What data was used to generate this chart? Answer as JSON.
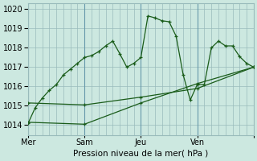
{
  "xlabel": "Pression niveau de la mer( hPa )",
  "bg_color": "#cce8e0",
  "grid_color": "#99bbbb",
  "line_color": "#1a5c1a",
  "ylim": [
    1013.5,
    1020.3
  ],
  "yticks": [
    1014,
    1015,
    1016,
    1017,
    1018,
    1019,
    1020
  ],
  "xlim": [
    0,
    96
  ],
  "day_ticks": [
    0,
    24,
    48,
    72,
    96
  ],
  "day_labels": [
    "Mer",
    "Sam",
    "Jeu",
    "Ven",
    ""
  ],
  "minor_ticks": [
    0,
    3,
    6,
    9,
    12,
    15,
    18,
    21,
    24,
    27,
    30,
    33,
    36,
    39,
    42,
    45,
    48,
    51,
    54,
    57,
    60,
    63,
    66,
    69,
    72,
    75,
    78,
    81,
    84,
    87,
    90,
    93,
    96
  ],
  "series1_x": [
    0,
    3,
    6,
    9,
    12,
    15,
    18,
    21,
    24,
    27,
    30,
    33,
    36,
    39,
    42,
    45,
    48,
    51,
    54,
    57,
    60,
    63,
    66,
    69,
    72,
    75,
    78,
    81,
    84,
    87,
    90,
    93,
    96
  ],
  "series1_y": [
    1014.1,
    1014.9,
    1015.4,
    1015.8,
    1016.1,
    1016.6,
    1016.9,
    1017.2,
    1017.5,
    1017.6,
    1017.8,
    1018.1,
    1018.35,
    1017.7,
    1017.0,
    1017.2,
    1017.5,
    1019.65,
    1019.55,
    1019.4,
    1019.35,
    1018.6,
    1016.6,
    1015.3,
    1016.1,
    1016.1,
    1018.0,
    1018.35,
    1018.1,
    1018.1,
    1017.55,
    1017.2,
    1017.0
  ],
  "series2_x": [
    0,
    24,
    48,
    72,
    96
  ],
  "series2_y": [
    1015.15,
    1015.05,
    1015.45,
    1015.9,
    1017.0
  ],
  "series3_x": [
    0,
    24,
    48,
    72,
    96
  ],
  "series3_y": [
    1014.15,
    1014.05,
    1015.15,
    1016.15,
    1017.0
  ]
}
